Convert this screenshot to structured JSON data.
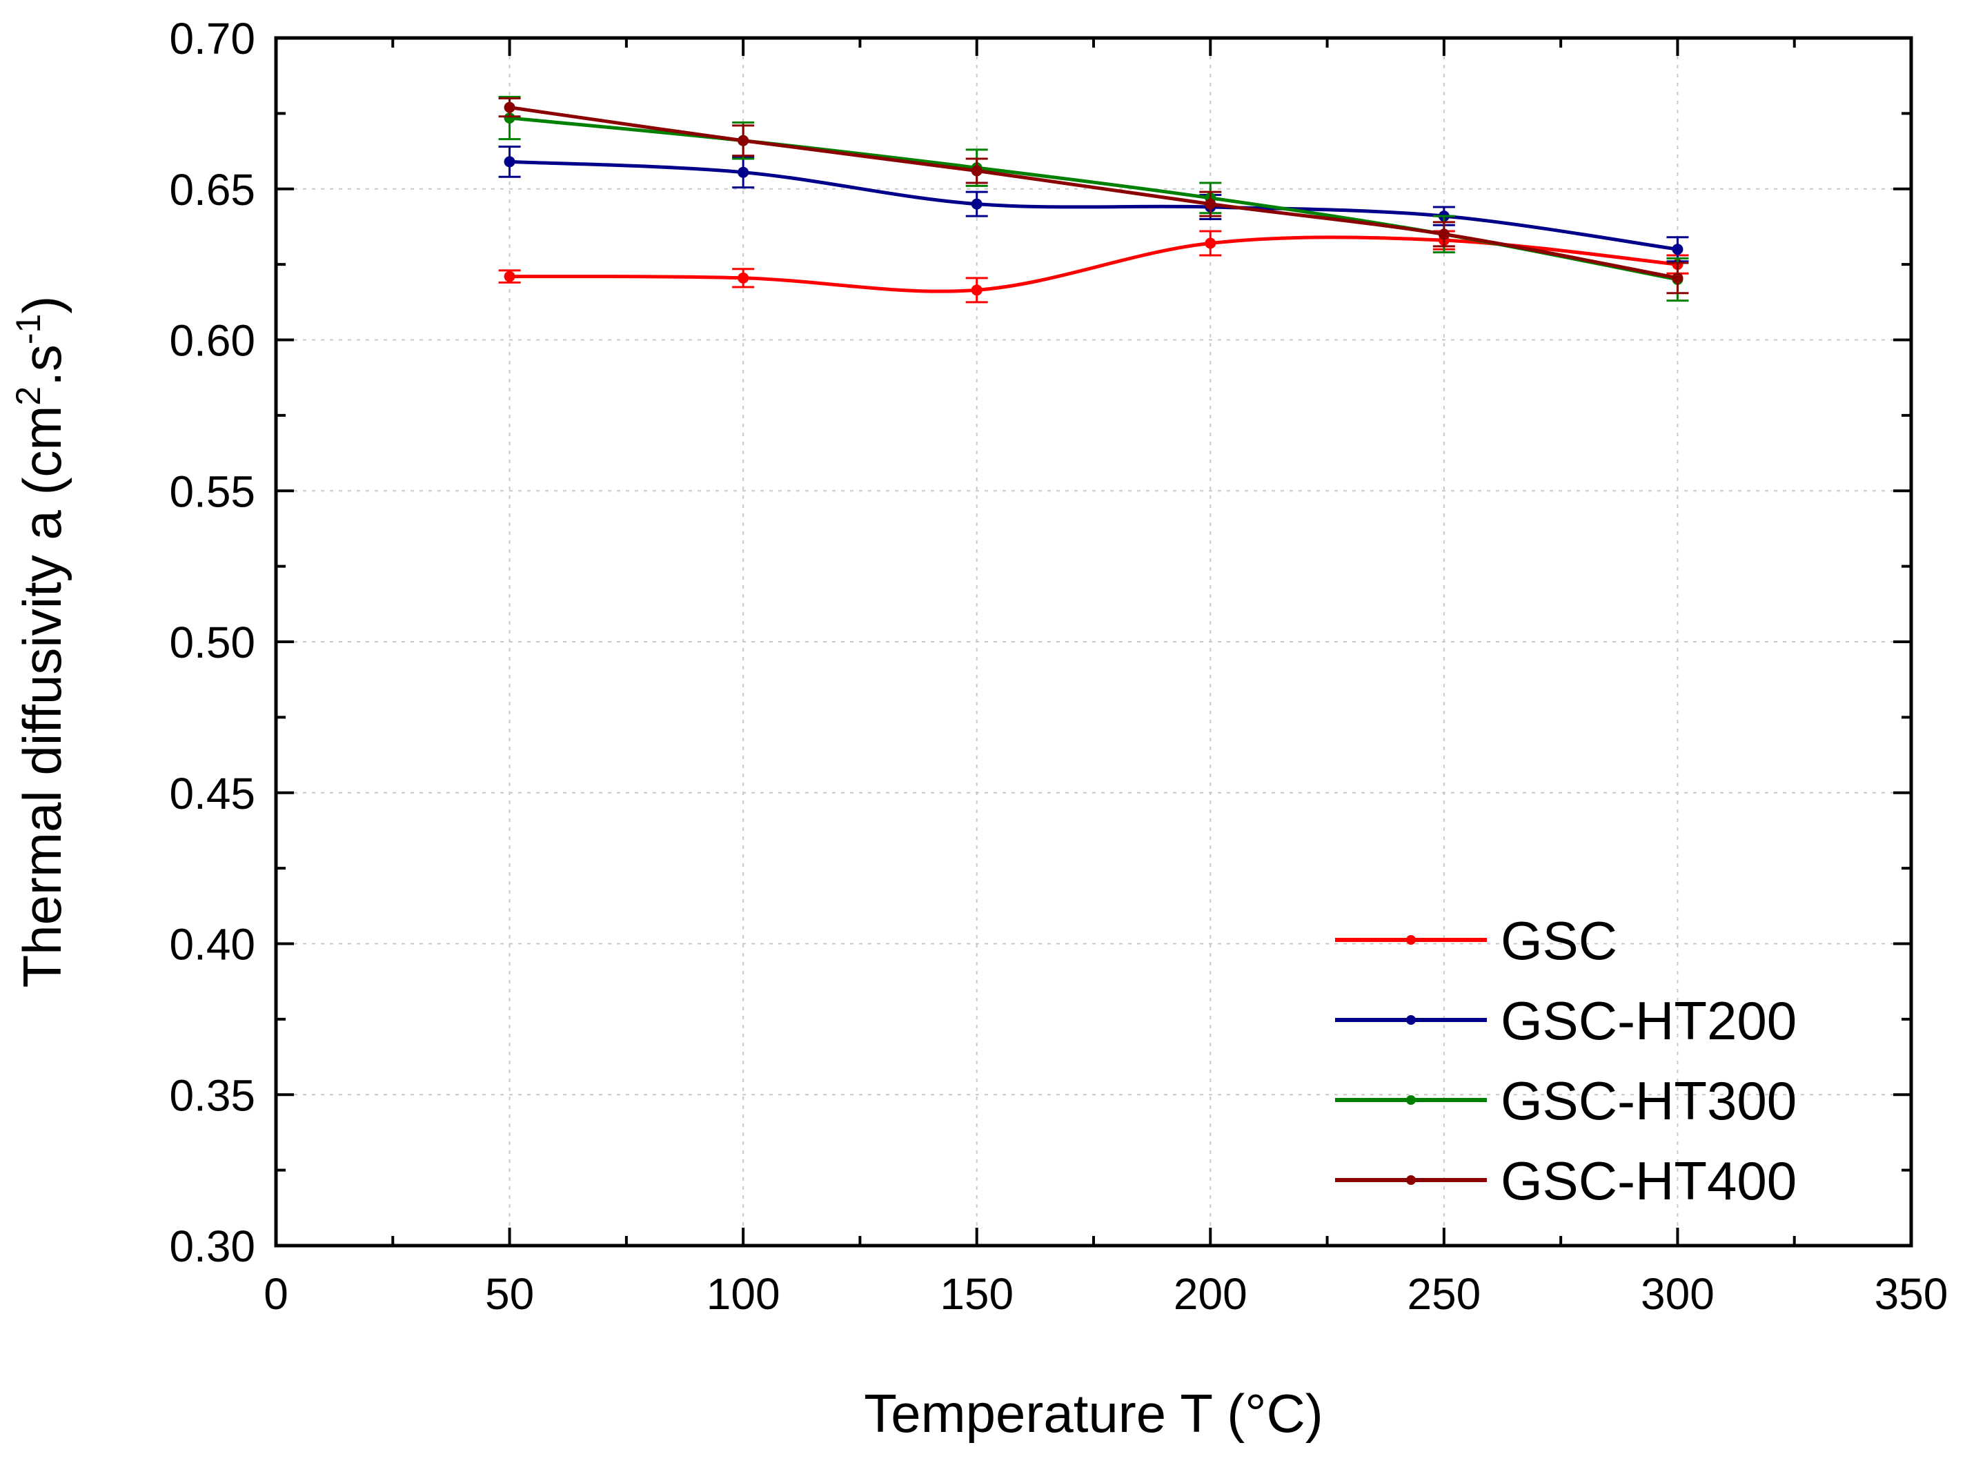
{
  "chart_data": {
    "type": "line",
    "title": "",
    "xlabel": "Temperature T (°C)",
    "ylabel": {
      "prefix": "Thermal diffusivity a (cm",
      "sup1": "2",
      "middle": ".s",
      "sup2": "-1",
      "suffix": ")"
    },
    "xlim": [
      0,
      350
    ],
    "ylim": [
      0.3,
      0.7
    ],
    "x_ticks": [
      0,
      50,
      100,
      150,
      200,
      250,
      300,
      350
    ],
    "x_tick_labels": [
      "0",
      "50",
      "100",
      "150",
      "200",
      "250",
      "300",
      "350"
    ],
    "y_ticks": [
      0.3,
      0.35,
      0.4,
      0.45,
      0.5,
      0.55,
      0.6,
      0.65,
      0.7
    ],
    "y_tick_labels": [
      "0.30",
      "0.35",
      "0.40",
      "0.45",
      "0.50",
      "0.55",
      "0.60",
      "0.65",
      "0.70"
    ],
    "grid": true,
    "legend_position": "bottom-right",
    "x": [
      50,
      100,
      150,
      200,
      250,
      300
    ],
    "series": [
      {
        "name": "GSC",
        "color": "#ff0000",
        "values": [
          0.621,
          0.6205,
          0.6165,
          0.632,
          0.633,
          0.625
        ],
        "errors": [
          0.002,
          0.003,
          0.004,
          0.004,
          0.003,
          0.003
        ]
      },
      {
        "name": "GSC-HT200",
        "color": "#00008b",
        "values": [
          0.659,
          0.6555,
          0.645,
          0.644,
          0.641,
          0.63
        ],
        "errors": [
          0.005,
          0.005,
          0.004,
          0.004,
          0.003,
          0.004
        ]
      },
      {
        "name": "GSC-HT300",
        "color": "#008000",
        "values": [
          0.6735,
          0.666,
          0.657,
          0.647,
          0.635,
          0.62
        ],
        "errors": [
          0.007,
          0.006,
          0.006,
          0.005,
          0.006,
          0.007
        ]
      },
      {
        "name": "GSC-HT400",
        "color": "#8b0000",
        "values": [
          0.677,
          0.666,
          0.656,
          0.645,
          0.635,
          0.6205
        ],
        "errors": [
          0.003,
          0.005,
          0.004,
          0.004,
          0.004,
          0.005
        ]
      }
    ]
  }
}
